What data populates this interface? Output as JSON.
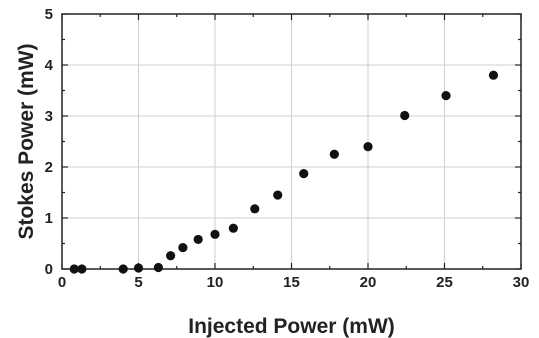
{
  "chart_data": {
    "type": "scatter",
    "xlabel": "Injected Power (mW)",
    "ylabel": "Stokes Power (mW)",
    "xlim": [
      0,
      30
    ],
    "ylim": [
      0,
      5
    ],
    "x_ticks": [
      0,
      5,
      10,
      15,
      20,
      25,
      30
    ],
    "y_ticks": [
      0,
      1,
      2,
      3,
      4,
      5
    ],
    "x_ticks_labels": [
      "0",
      "5",
      "10",
      "15",
      "20",
      "25",
      "30"
    ],
    "y_ticks_labels": [
      "0",
      "1",
      "2",
      "3",
      "4",
      "5"
    ],
    "grid": true,
    "marker_color": "#111111",
    "series": [
      {
        "x": [
          0.8,
          1.3,
          4.0,
          5.0,
          6.3,
          7.1,
          7.9,
          8.9,
          10.0,
          11.2,
          12.6,
          14.1,
          15.8,
          17.8,
          20.0,
          22.4,
          25.1,
          28.2
        ],
        "y": [
          0.0,
          0.0,
          0.0,
          0.02,
          0.03,
          0.26,
          0.42,
          0.58,
          0.68,
          0.8,
          1.18,
          1.45,
          1.87,
          2.25,
          2.4,
          3.01,
          3.4,
          3.8
        ]
      }
    ]
  }
}
